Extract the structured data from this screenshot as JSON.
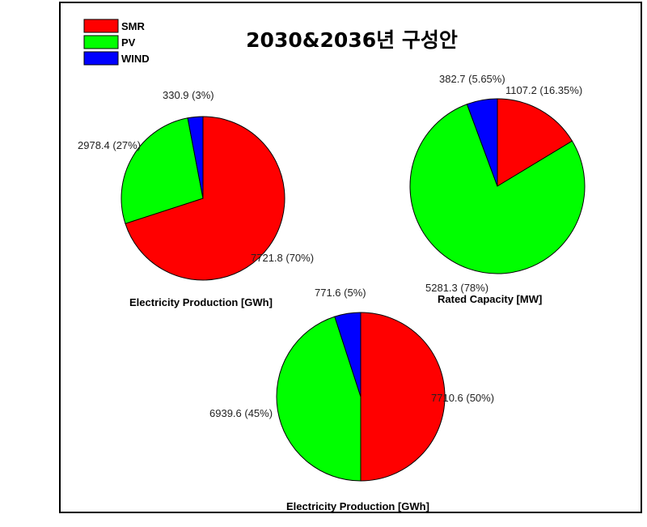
{
  "title": "2030&2036년 구성안",
  "legend": [
    {
      "label": "SMR",
      "color": "#ff0000"
    },
    {
      "label": "PV",
      "color": "#00ff00"
    },
    {
      "label": "WIND",
      "color": "#0000ff"
    }
  ],
  "chart_data": [
    {
      "type": "pie",
      "caption": "Electricity Production [GWh]",
      "slices": [
        {
          "name": "SMR",
          "value": 7721.8,
          "label": "7721.8 (70%)",
          "color": "#ff0000"
        },
        {
          "name": "PV",
          "value": 2978.4,
          "label": "2978.4 (27%)",
          "color": "#00ff00"
        },
        {
          "name": "WIND",
          "value": 330.9,
          "label": "330.9 (3%)",
          "color": "#0000ff"
        }
      ]
    },
    {
      "type": "pie",
      "caption": "Rated Capacity [MW]",
      "slices": [
        {
          "name": "SMR",
          "value": 1107.2,
          "label": "1107.2 (16.35%)",
          "color": "#ff0000"
        },
        {
          "name": "PV",
          "value": 5281.3,
          "label": "5281.3 (78%)",
          "color": "#00ff00"
        },
        {
          "name": "WIND",
          "value": 382.7,
          "label": "382.7 (5.65%)",
          "color": "#0000ff"
        }
      ]
    },
    {
      "type": "pie",
      "caption": "Electricity Production [GWh]",
      "slices": [
        {
          "name": "SMR",
          "value": 7710.6,
          "label": "7710.6 (50%)",
          "color": "#ff0000"
        },
        {
          "name": "PV",
          "value": 6939.6,
          "label": "6939.6 (45%)",
          "color": "#00ff00"
        },
        {
          "name": "WIND",
          "value": 771.6,
          "label": "771.6 (5%)",
          "color": "#0000ff"
        }
      ]
    }
  ]
}
